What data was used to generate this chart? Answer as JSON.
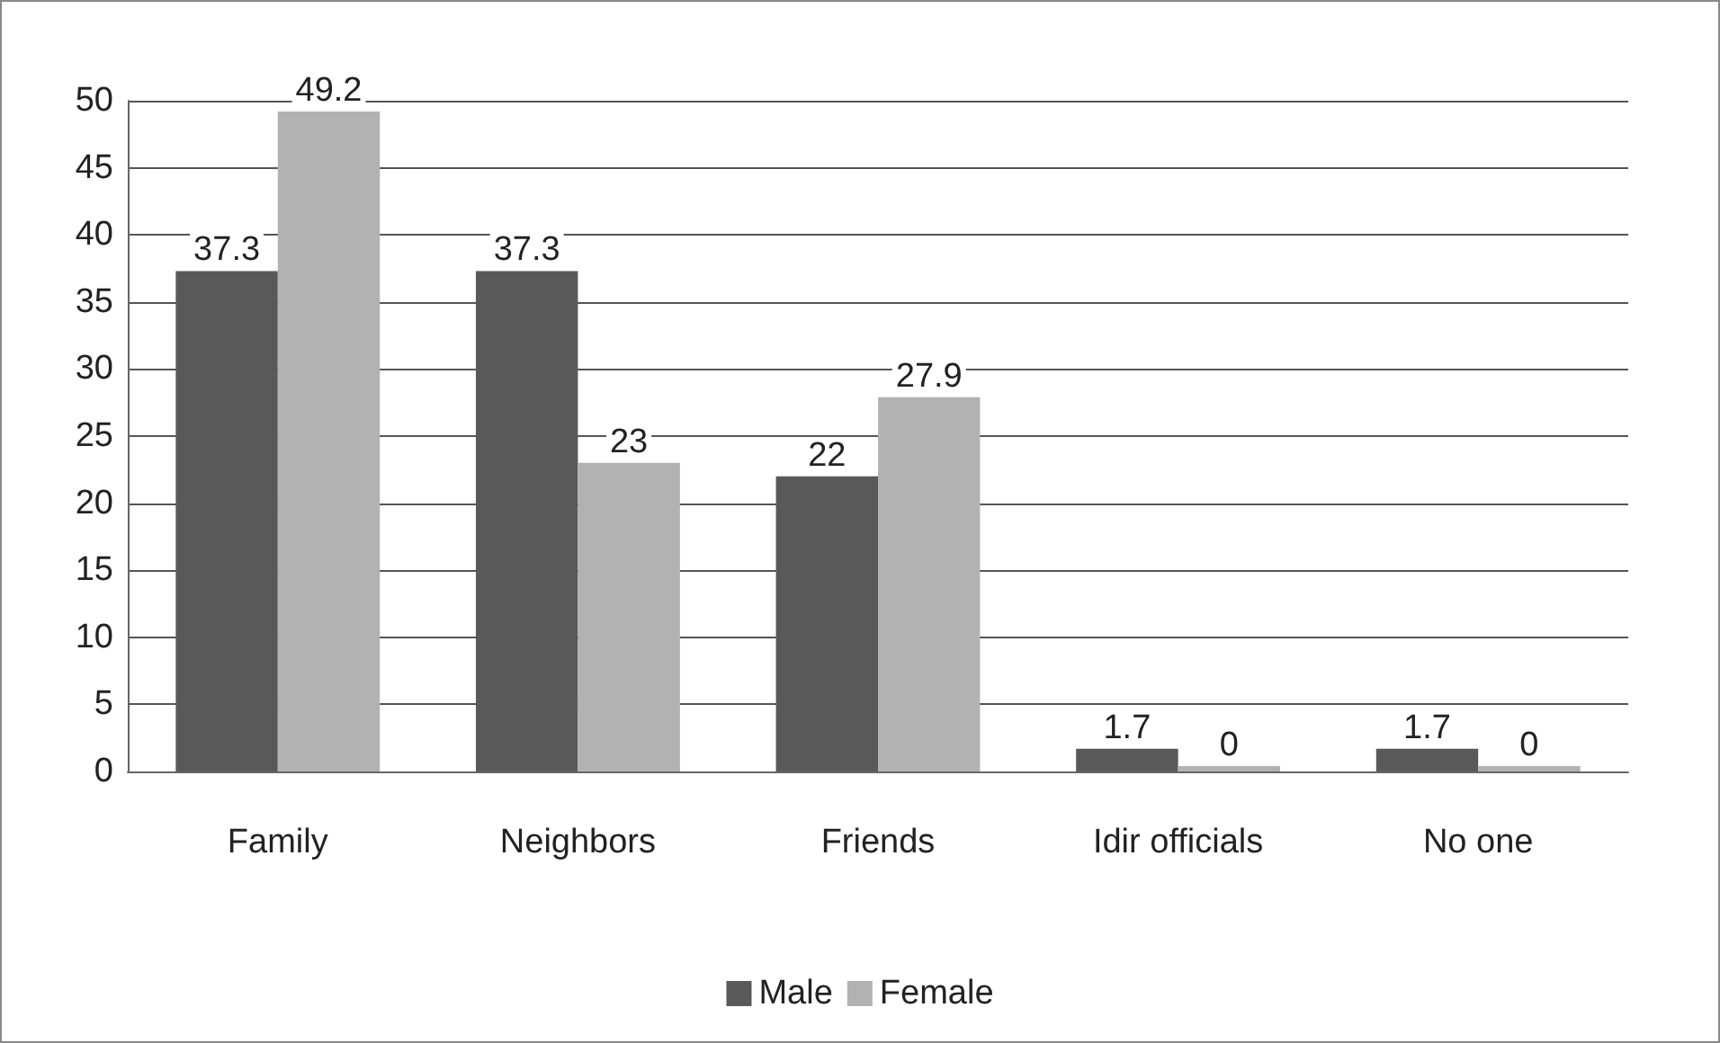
{
  "chart_data": {
    "type": "bar",
    "categories": [
      "Family",
      "Neighbors",
      "Friends",
      "Idir officials",
      "No one"
    ],
    "series": [
      {
        "name": "Male",
        "color": "#595959",
        "values": [
          37.3,
          37.3,
          22,
          1.7,
          1.7
        ]
      },
      {
        "name": "Female",
        "color": "#b2b2b2",
        "values": [
          49.2,
          23,
          27.9,
          0,
          0
        ]
      }
    ],
    "ylim": [
      0,
      50
    ],
    "yticks": [
      0,
      5,
      10,
      15,
      20,
      25,
      30,
      35,
      40,
      45,
      50
    ],
    "grid": "y",
    "legend": "bottom",
    "data_labels": true
  }
}
